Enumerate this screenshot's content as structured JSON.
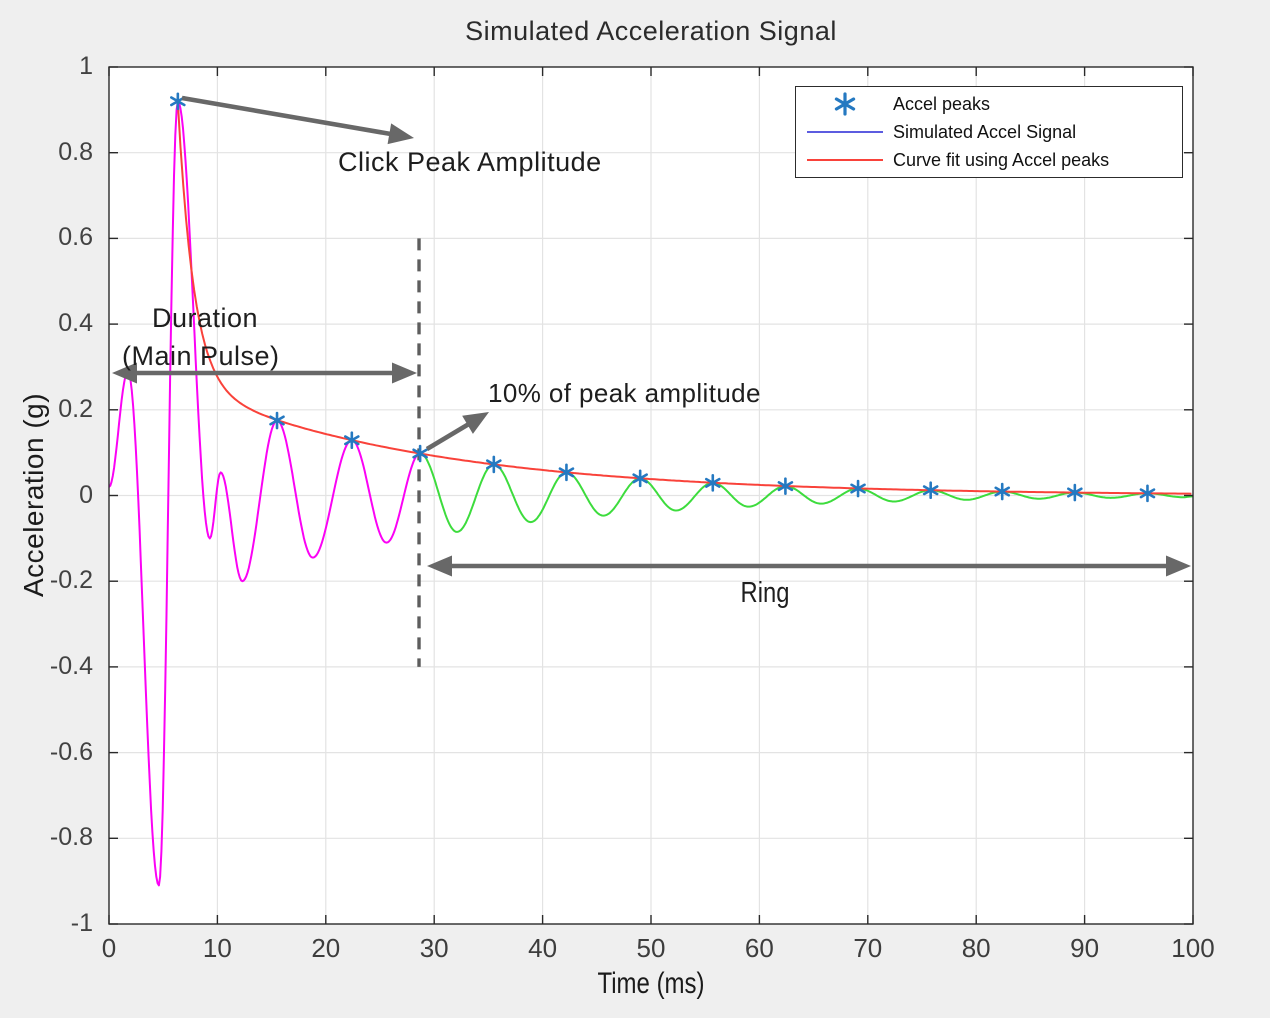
{
  "figure": {
    "title": "Simulated Acceleration Signal",
    "background_color": "#efefef",
    "plot_background_color": "#ffffff"
  },
  "axes": {
    "xlabel": "Time (ms)",
    "ylabel": "Acceleration (g)",
    "xlim": [
      0,
      100
    ],
    "ylim": [
      -1,
      1
    ],
    "x_tick_labels": [
      "0",
      "10",
      "20",
      "30",
      "40",
      "50",
      "60",
      "70",
      "80",
      "90",
      "100"
    ],
    "y_tick_labels": [
      "1",
      "0.8",
      "0.6",
      "0.4",
      "0.2",
      "0",
      "-0.2",
      "-0.4",
      "-0.6",
      "-0.8",
      "-1"
    ],
    "grid": true
  },
  "legend": {
    "position": "top-right",
    "items": [
      {
        "label": "Accel peaks",
        "type": "marker",
        "marker": "asterisk",
        "color": "#2579c1"
      },
      {
        "label": "Simulated Accel Signal",
        "type": "line",
        "color": "#5c5ce0"
      },
      {
        "label": "Curve fit using Accel peaks",
        "type": "line",
        "color": "#f9423a"
      }
    ]
  },
  "annotations": {
    "click_peak": "Click Peak Amplitude",
    "duration_line1": "Duration",
    "duration_line2": "(Main Pulse)",
    "ten_percent": "10% of peak amplitude",
    "ring": "Ring"
  },
  "chart_data": {
    "type": "line",
    "title": "Simulated Acceleration Signal",
    "xlabel": "Time (ms)",
    "ylabel": "Acceleration (g)",
    "xlim": [
      0,
      100
    ],
    "ylim": [
      -1,
      1
    ],
    "grid": true,
    "legend_position": "top-right",
    "threshold": {
      "time_ms": 28.6,
      "level_g": 0.098,
      "meaning": "10% of peak amplitude",
      "dashed_line_y_span_g": [
        0.6,
        -0.4
      ]
    },
    "main_pulse_span_ms": [
      0,
      28.6
    ],
    "ring_span_ms": [
      28.6,
      100
    ],
    "series": [
      {
        "name": "Simulated Accel Signal (main pulse segment)",
        "color": "#fb02f5",
        "interpolation": "cosine-between-extrema",
        "extrema": [
          [
            0,
            0.02
          ],
          [
            1.75,
            0.29
          ],
          [
            4.6,
            -0.91
          ],
          [
            6.35,
            0.92
          ],
          [
            9.3,
            -0.1
          ],
          [
            10.3,
            0.054
          ],
          [
            12.3,
            -0.2
          ],
          [
            15.5,
            0.175
          ],
          [
            18.8,
            -0.145
          ],
          [
            22.4,
            0.129
          ],
          [
            25.6,
            -0.11
          ],
          [
            28.7,
            0.098
          ]
        ]
      },
      {
        "name": "Simulated Accel Signal (ring segment)",
        "color": "#3ddc3d",
        "interpolation": "cosine-between-extrema",
        "extrema": [
          [
            28.7,
            0.098
          ],
          [
            32.1,
            -0.085
          ],
          [
            35.5,
            0.0726
          ],
          [
            38.9,
            -0.062
          ],
          [
            42.2,
            0.054
          ],
          [
            45.6,
            -0.047
          ],
          [
            49.0,
            0.04
          ],
          [
            52.3,
            -0.035
          ],
          [
            55.7,
            0.0295
          ],
          [
            59.0,
            -0.026
          ],
          [
            62.4,
            0.0218
          ],
          [
            65.7,
            -0.019
          ],
          [
            69.1,
            0.0162
          ],
          [
            72.4,
            -0.014
          ],
          [
            75.8,
            0.0123
          ],
          [
            79.1,
            -0.01
          ],
          [
            82.4,
            0.0092
          ],
          [
            85.8,
            -0.0075
          ],
          [
            89.1,
            0.0069
          ],
          [
            92.4,
            -0.0055
          ],
          [
            95.8,
            0.0051
          ],
          [
            99.1,
            -0.004
          ],
          [
            100,
            -0.002
          ]
        ]
      },
      {
        "name": "Curve fit using Accel peaks",
        "color": "#f9423a",
        "fit": {
          "form": "a*exp(b*(t-t0)) + c*exp(d*t)",
          "a": 0.658,
          "b": -0.686,
          "t0": 6.35,
          "c": 0.346,
          "d": -0.044,
          "domain_ms": [
            6.35,
            100
          ]
        }
      }
    ],
    "peaks": {
      "name": "Accel peaks",
      "marker": "asterisk",
      "color": "#2579c1",
      "points": [
        [
          6.35,
          0.92
        ],
        [
          15.5,
          0.175
        ],
        [
          22.4,
          0.129
        ],
        [
          28.7,
          0.098
        ],
        [
          35.5,
          0.0726
        ],
        [
          42.2,
          0.054
        ],
        [
          49.0,
          0.04
        ],
        [
          55.7,
          0.0295
        ],
        [
          62.4,
          0.0218
        ],
        [
          69.1,
          0.0162
        ],
        [
          75.8,
          0.0123
        ],
        [
          82.4,
          0.0092
        ],
        [
          89.1,
          0.0069
        ],
        [
          95.8,
          0.0051
        ]
      ]
    }
  },
  "colors": {
    "grid": "#e3e3e3",
    "axis_box": "#2a2a2a",
    "tick_label": "#3f3f3f",
    "arrow": "#686868",
    "dashed_line": "#5d5d5d",
    "main_pulse_line": "#fb02f5",
    "ring_line": "#3ddc3d",
    "curve_fit_line": "#f9423a",
    "peak_marker": "#2579c1"
  }
}
